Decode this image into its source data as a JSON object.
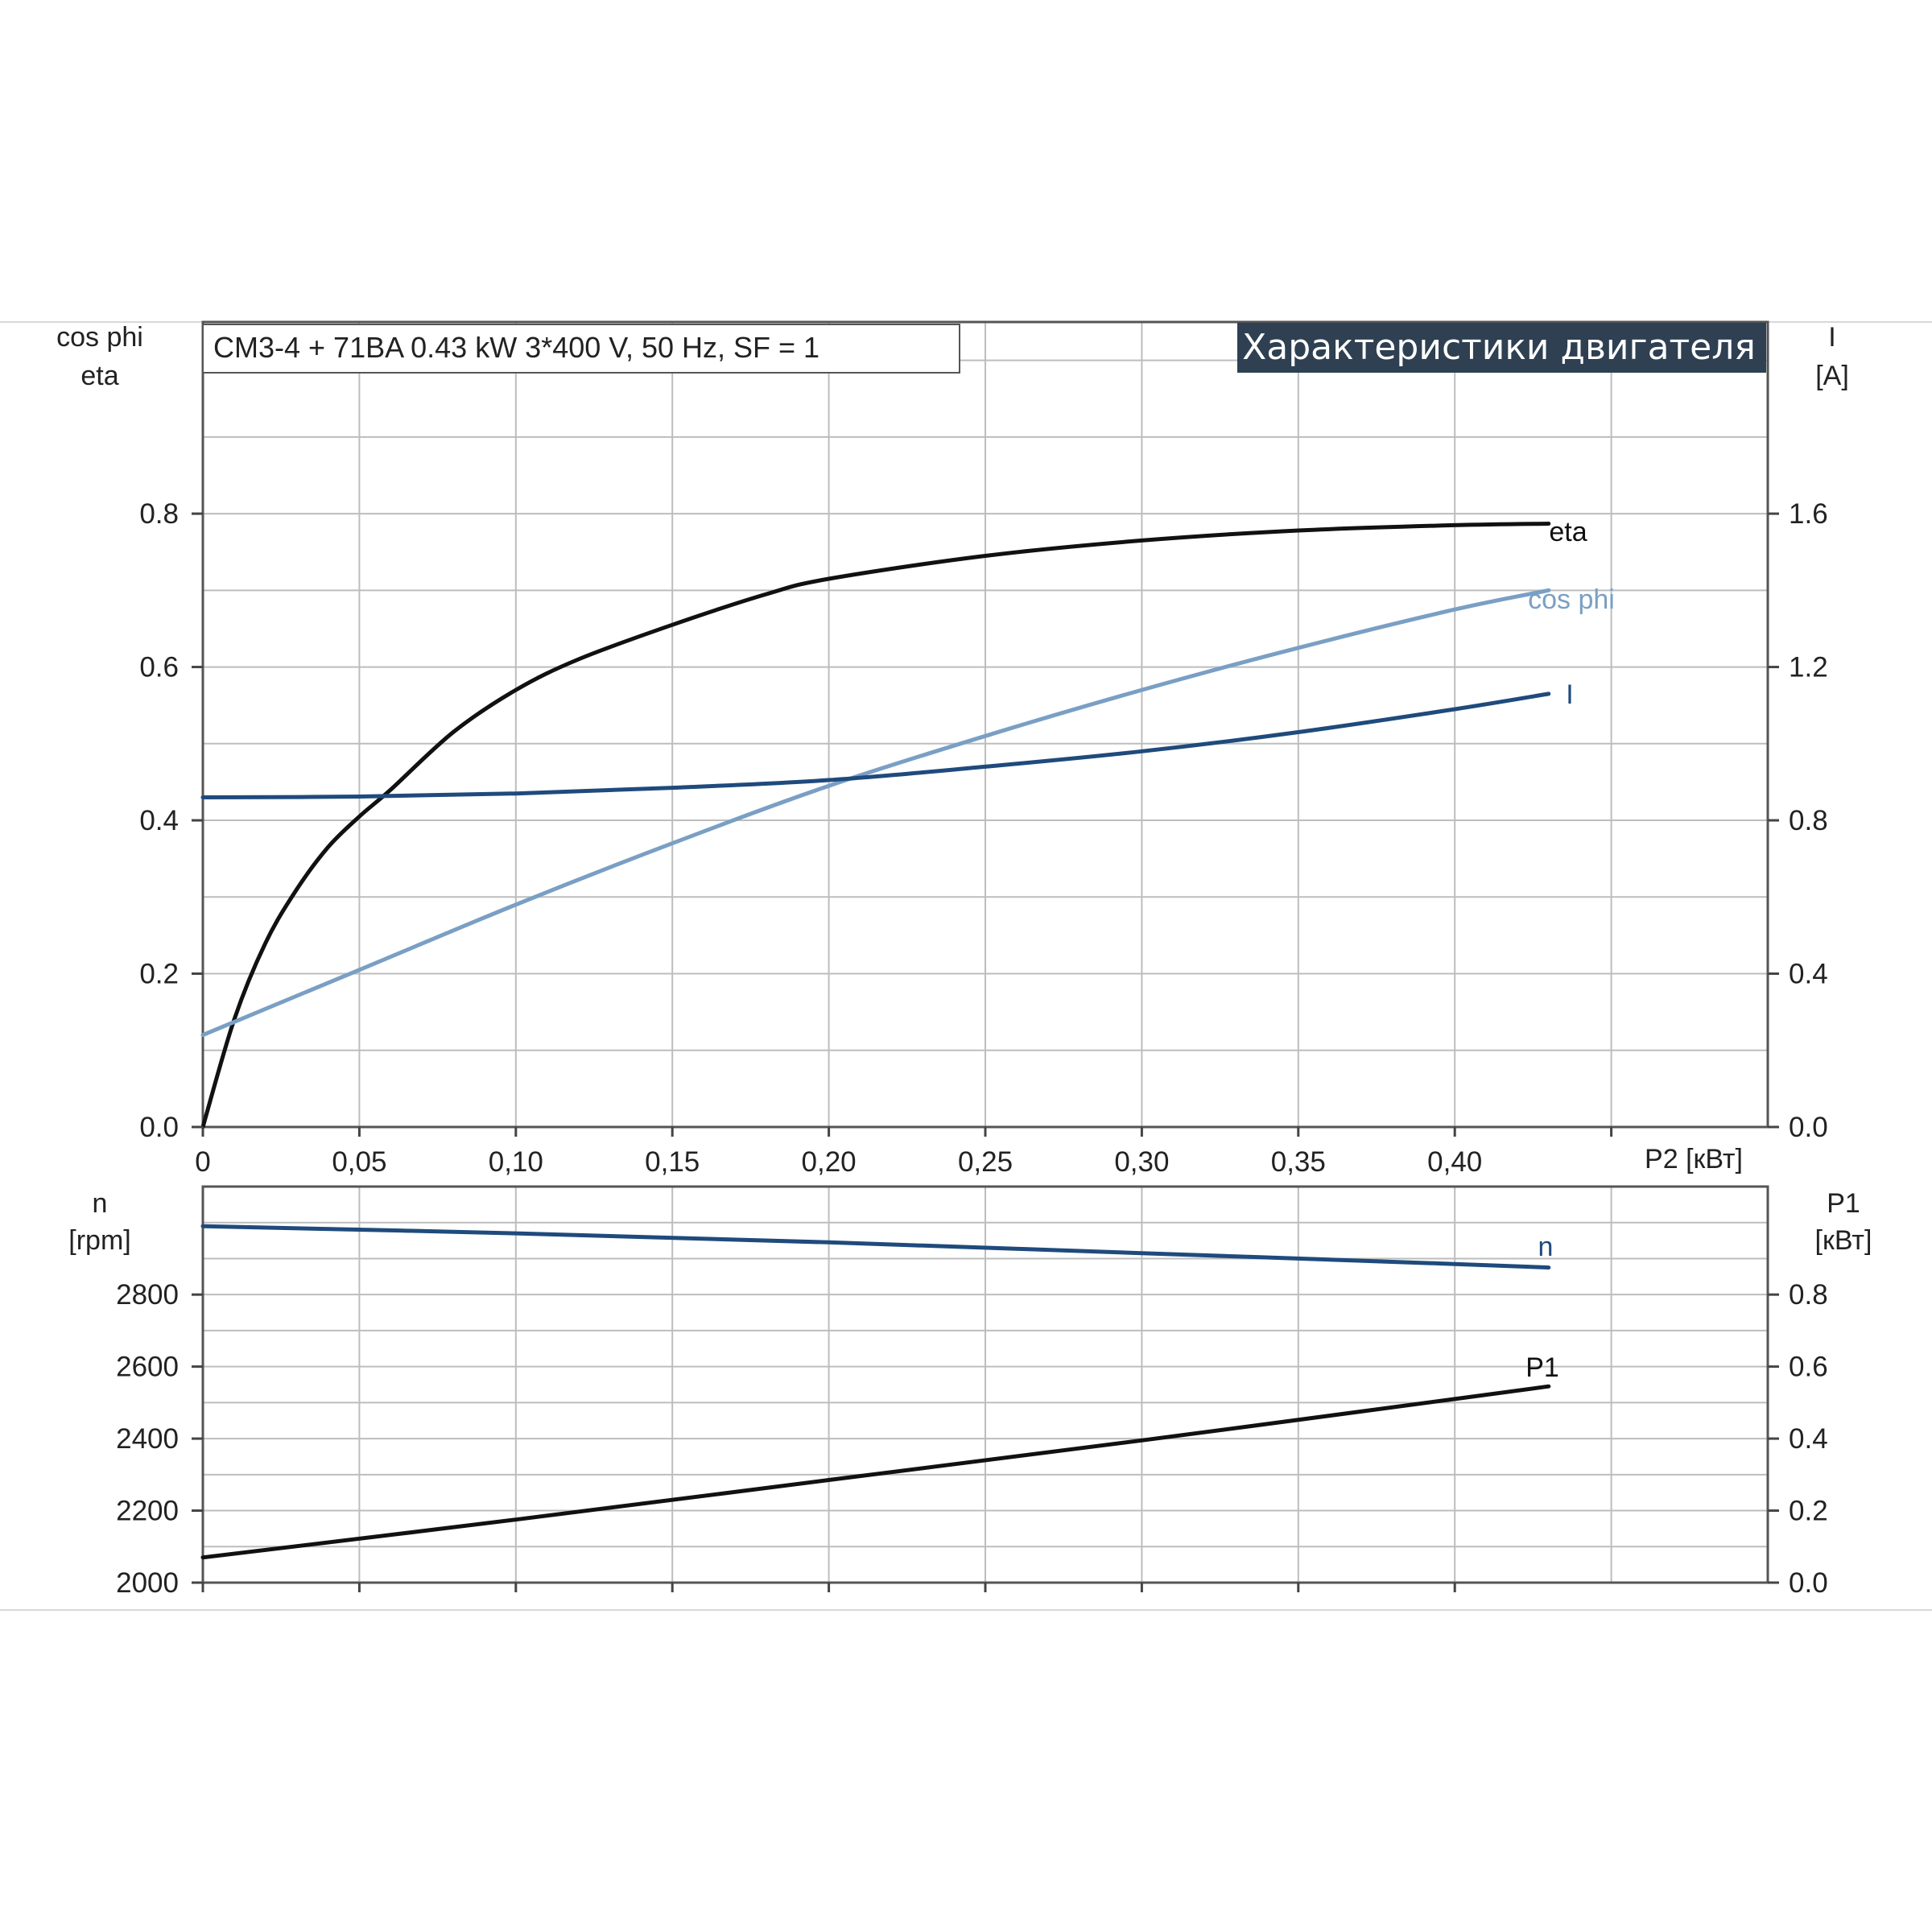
{
  "header": {
    "info": "CM3-4 + 71BA   0.43 kW   3*400 V, 50 Hz, SF = 1",
    "banner": "Характеристики двигателя"
  },
  "colors": {
    "eta": "#111111",
    "cosphi": "#7a9fc4",
    "current": "#1f4a7c",
    "speed": "#1f4a7c",
    "p1": "#111111",
    "grid": "#bdbdbd",
    "banner_bg": "#2e4052"
  },
  "chart_data": [
    {
      "type": "line",
      "x_axis": {
        "label": "P2 [кВт]",
        "range": [
          0,
          0.5
        ],
        "ticks": [
          0,
          0.05,
          0.1,
          0.15,
          0.2,
          0.25,
          0.3,
          0.35,
          0.4
        ],
        "tick_labels": [
          "0",
          "0,05",
          "0,10",
          "0,15",
          "0,20",
          "0,25",
          "0,30",
          "0,35",
          "0,40"
        ]
      },
      "y_left": {
        "label_lines": [
          "cos phi",
          "eta"
        ],
        "range": [
          0,
          1.05
        ],
        "ticks": [
          0,
          0.2,
          0.4,
          0.6,
          0.8
        ],
        "tick_labels": [
          "0.0",
          "0.2",
          "0.4",
          "0.6",
          "0.8"
        ]
      },
      "y_right": {
        "label_lines": [
          "I",
          "[A]"
        ],
        "range": [
          0,
          2.1
        ],
        "ticks": [
          0,
          0.4,
          0.8,
          1.2,
          1.6
        ],
        "tick_labels": [
          "0.0",
          "0.4",
          "0.8",
          "1.2",
          "1.6"
        ]
      },
      "grid": true,
      "series": [
        {
          "name": "eta",
          "key": "eta",
          "axis": "left",
          "x": [
            0,
            0.01,
            0.02,
            0.03,
            0.04,
            0.05,
            0.06,
            0.08,
            0.1,
            0.12,
            0.15,
            0.18,
            0.2,
            0.25,
            0.3,
            0.35,
            0.4,
            0.43
          ],
          "y": [
            0,
            0.14,
            0.24,
            0.31,
            0.365,
            0.405,
            0.44,
            0.515,
            0.57,
            0.61,
            0.655,
            0.695,
            0.715,
            0.745,
            0.765,
            0.778,
            0.785,
            0.787
          ]
        },
        {
          "name": "cos phi",
          "key": "cosphi",
          "axis": "left",
          "x": [
            0,
            0.05,
            0.1,
            0.15,
            0.2,
            0.25,
            0.3,
            0.35,
            0.4,
            0.43
          ],
          "y": [
            0.12,
            0.205,
            0.29,
            0.37,
            0.445,
            0.51,
            0.57,
            0.625,
            0.675,
            0.7
          ]
        },
        {
          "name": "I",
          "key": "current",
          "axis": "right",
          "x": [
            0,
            0.05,
            0.1,
            0.15,
            0.2,
            0.25,
            0.3,
            0.35,
            0.4,
            0.43
          ],
          "y": [
            0.86,
            0.862,
            0.87,
            0.885,
            0.905,
            0.94,
            0.98,
            1.03,
            1.09,
            1.13
          ]
        }
      ]
    },
    {
      "type": "line",
      "x_axis": {
        "range": [
          0,
          0.5
        ],
        "ticks": [
          0,
          0.05,
          0.1,
          0.15,
          0.2,
          0.25,
          0.3,
          0.35,
          0.4
        ]
      },
      "y_left": {
        "label_lines": [
          "n",
          "[rpm]"
        ],
        "range": [
          2000,
          3100
        ],
        "ticks": [
          2000,
          2200,
          2400,
          2600,
          2800
        ],
        "tick_labels": [
          "2000",
          "2200",
          "2400",
          "2600",
          "2800"
        ]
      },
      "y_right": {
        "label_lines": [
          "P1",
          "[кВт]"
        ],
        "range": [
          0,
          1.1
        ],
        "ticks": [
          0,
          0.2,
          0.4,
          0.6,
          0.8
        ],
        "tick_labels": [
          "0.0",
          "0.2",
          "0.4",
          "0.6",
          "0.8"
        ]
      },
      "grid": true,
      "series": [
        {
          "name": "n",
          "key": "speed",
          "axis": "left",
          "x": [
            0,
            0.1,
            0.2,
            0.3,
            0.4,
            0.43
          ],
          "y": [
            2990,
            2970,
            2945,
            2915,
            2885,
            2875
          ]
        },
        {
          "name": "P1",
          "key": "p1",
          "axis": "right",
          "x": [
            0,
            0.1,
            0.2,
            0.3,
            0.4,
            0.43
          ],
          "y": [
            0.07,
            0.175,
            0.285,
            0.395,
            0.51,
            0.545
          ]
        }
      ]
    }
  ]
}
